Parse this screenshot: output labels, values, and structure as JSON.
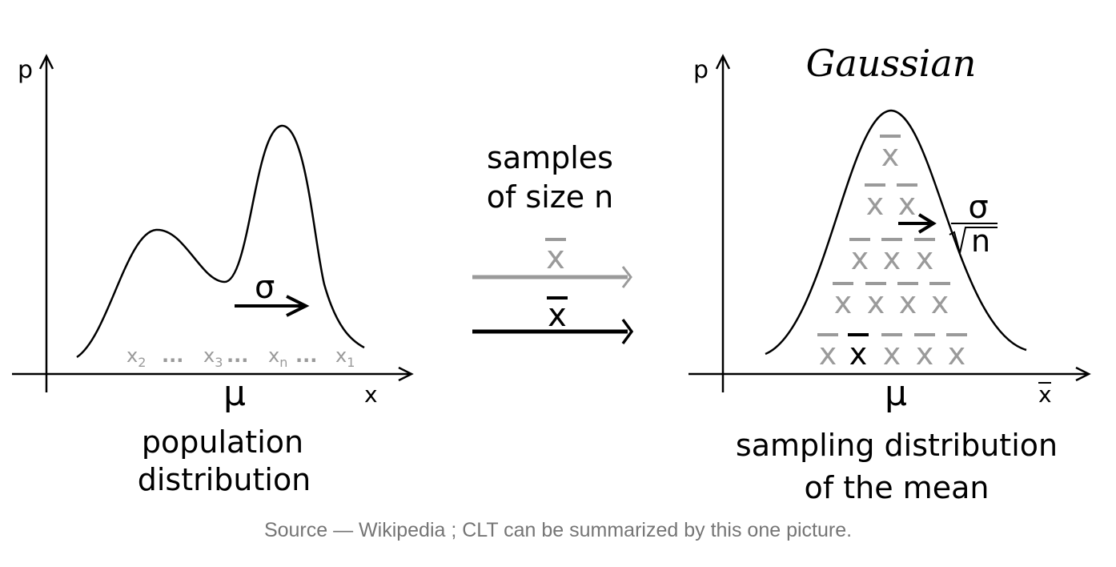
{
  "left_panel": {
    "y_axis_label": "p",
    "x_axis_label": "x",
    "mean_label": "μ",
    "sigma_label": "σ",
    "samples": [
      {
        "base": "x",
        "sub": "2"
      },
      {
        "sep": "..."
      },
      {
        "base": "x",
        "sub": "3"
      },
      {
        "sep": "..."
      },
      {
        "base": "x",
        "sub": "n"
      },
      {
        "sep": "..."
      },
      {
        "base": "x",
        "sub": "1"
      }
    ],
    "caption_line1": "population",
    "caption_line2": "distribution"
  },
  "middle": {
    "line1": "samples",
    "line2": "of size n",
    "xbar_gray": "x",
    "xbar_black": "x"
  },
  "right_panel": {
    "title": "Gaussian",
    "y_axis_label": "p",
    "x_axis_label": "x",
    "mean_label": "μ",
    "sigma_label": "σ",
    "sqrt_n_label": "n",
    "xbar_symbol": "x",
    "caption_line1": "sampling distribution",
    "caption_line2": "of the mean"
  },
  "caption": "Source — Wikipedia ; CLT can be summarized by this one picture.",
  "colors": {
    "black": "#000000",
    "gray": "#9a9a9a",
    "caption": "#757575"
  }
}
